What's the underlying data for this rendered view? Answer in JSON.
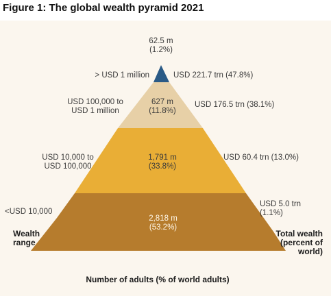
{
  "title": "Figure 1: The global wealth pyramid 2021",
  "colors": {
    "background": "#fbf6ee",
    "tier_top": "#2a5a86",
    "tier_upper_middle": "#e7d0a7",
    "tier_middle": "#e9ae36",
    "tier_base": "#b67c2d"
  },
  "tiers": [
    {
      "wealth_range": "> USD 1 million",
      "adults": "62.5 m\n(1.2%)",
      "total_wealth": "USD 221.7 trn (47.8%)"
    },
    {
      "wealth_range": "USD 100,000 to\nUSD 1 million",
      "adults": "627 m\n(11.8%)",
      "total_wealth": "USD 176.5 trn (38.1%)"
    },
    {
      "wealth_range": "USD 10,000 to\nUSD 100,000",
      "adults": "1,791 m\n(33.8%)",
      "total_wealth": "USD 60.4 trn (13.0%)"
    },
    {
      "wealth_range": "<USD 10,000",
      "adults": "2,818 m\n(53.2%)",
      "total_wealth": "USD 5.0 trn\n(1.1%)"
    }
  ],
  "labels": {
    "left_axis": "Wealth\nrange",
    "right_axis": "Total wealth\n(percent of\nworld)",
    "bottom_axis": "Number of adults (% of world adults)"
  }
}
